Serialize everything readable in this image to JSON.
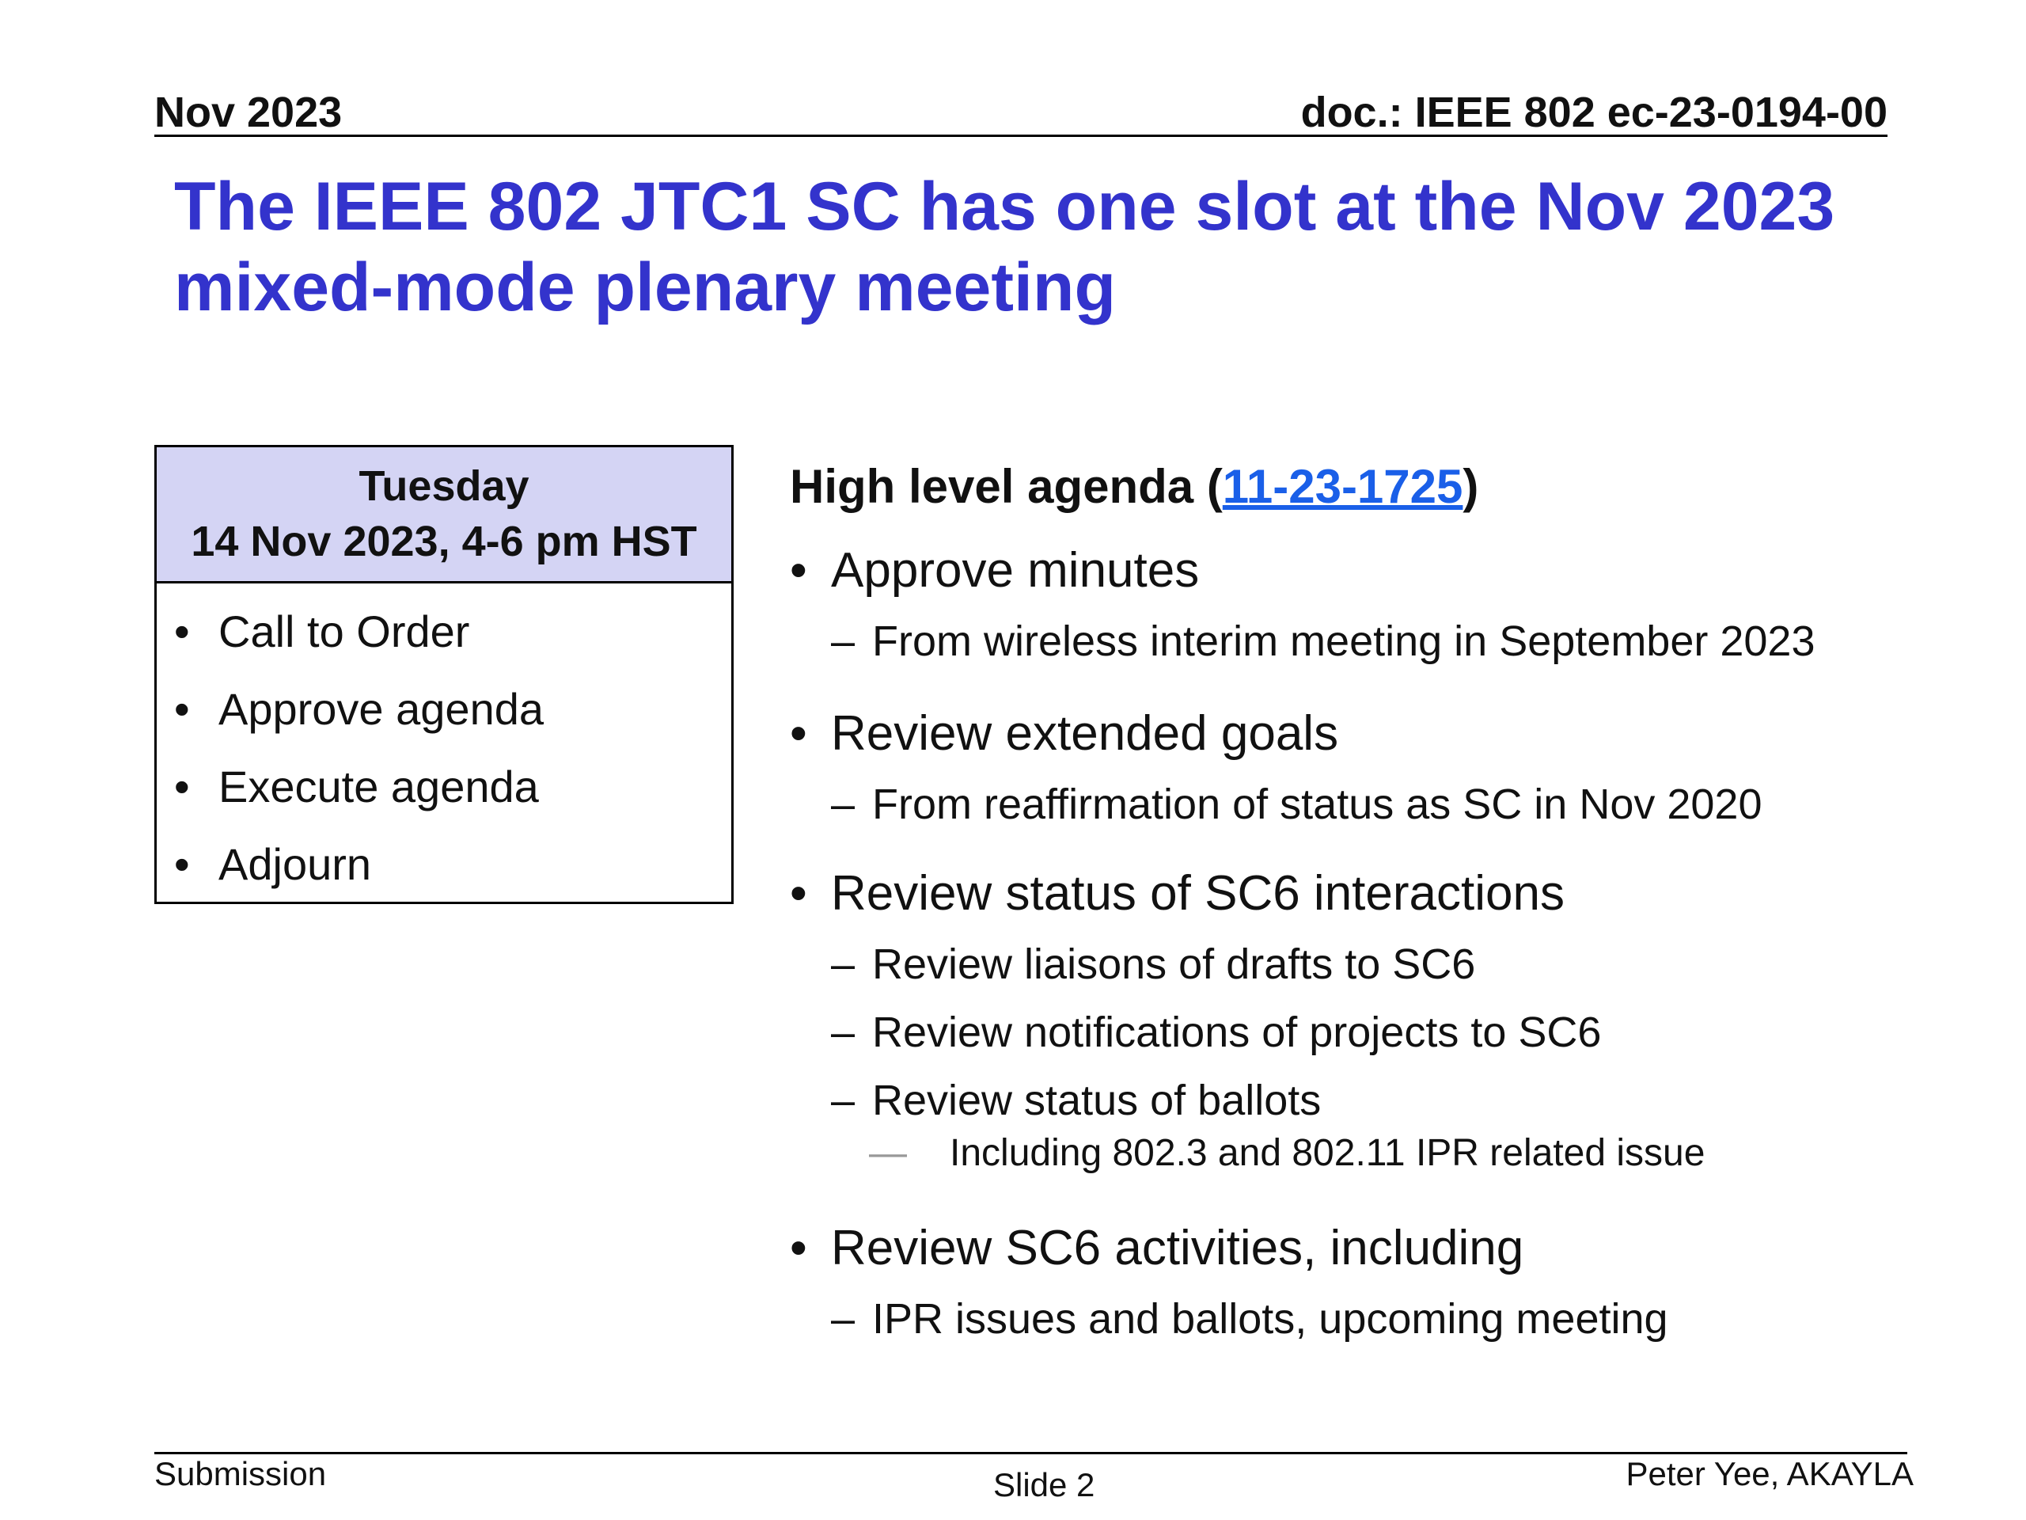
{
  "header": {
    "date": "Nov 2023",
    "doc": "doc.: IEEE 802 ec-23-0194-00"
  },
  "title": "The IEEE 802 JTC1 SC has one slot at the Nov 2023 mixed-mode plenary meeting",
  "session": {
    "day": "Tuesday",
    "datetime": "14 Nov 2023, 4-6 pm HST",
    "items": [
      "Call to Order",
      "Approve agenda",
      "Execute agenda",
      "Adjourn"
    ]
  },
  "agenda": {
    "heading_prefix": "High level agenda (",
    "link_text": "11-23-1725",
    "heading_suffix": ")",
    "items": [
      {
        "label": "Approve minutes",
        "subitems": [
          {
            "label": "From wireless interim meeting in September 2023",
            "subitems": []
          }
        ]
      },
      {
        "label": "Review extended goals",
        "subitems": [
          {
            "label": "From reaffirmation of status as SC in Nov 2020",
            "subitems": []
          }
        ]
      },
      {
        "label": "Review status of SC6 interactions",
        "subitems": [
          {
            "label": "Review liaisons of drafts to SC6",
            "subitems": []
          },
          {
            "label": "Review notifications of projects to SC6",
            "subitems": []
          },
          {
            "label": "Review status of ballots",
            "subitems": [
              "Including 802.3 and 802.11 IPR related issue"
            ]
          }
        ]
      },
      {
        "label": "Review SC6 activities, including",
        "subitems": [
          {
            "label": "IPR issues and ballots, upcoming meeting",
            "subitems": []
          }
        ]
      }
    ]
  },
  "footer": {
    "left": "Submission",
    "center": "Slide 2",
    "right": "Peter Yee, AKAYLA"
  }
}
